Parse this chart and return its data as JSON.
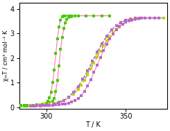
{
  "xlabel": "T / K",
  "ylabel": "χₘT / cm³ mol⁻¹ K",
  "xlim": [
    283,
    376
  ],
  "ylim": [
    -0.05,
    4.25
  ],
  "yticks": [
    0,
    1,
    2,
    3,
    4
  ],
  "xticks": [
    300,
    350
  ],
  "bg_color": "#ffffff",
  "colors": {
    "green": "#44cc00",
    "yellow": "#cccc00",
    "purple": "#bb66cc",
    "pink_line": "#ff88aa",
    "gray_line": "#888888"
  },
  "green_heat_T": [
    284,
    286,
    288,
    290,
    292,
    294,
    296,
    298,
    300,
    302,
    304,
    305,
    306,
    307,
    308,
    309,
    310,
    311,
    312,
    313,
    314,
    316,
    318,
    320,
    325,
    330,
    335,
    340
  ],
  "green_heat_V": [
    0.07,
    0.07,
    0.08,
    0.08,
    0.09,
    0.1,
    0.11,
    0.13,
    0.15,
    0.18,
    0.24,
    0.35,
    0.65,
    1.1,
    1.7,
    2.35,
    2.85,
    3.2,
    3.45,
    3.58,
    3.65,
    3.7,
    3.72,
    3.73,
    3.73,
    3.73,
    3.73,
    3.73
  ],
  "green_cool_T": [
    340,
    335,
    330,
    325,
    320,
    318,
    316,
    314,
    312,
    311,
    310,
    309,
    308,
    307,
    306,
    305,
    304,
    303,
    302,
    301,
    300,
    299,
    298,
    296,
    294,
    292,
    290,
    288,
    286,
    284
  ],
  "green_cool_V": [
    3.73,
    3.73,
    3.73,
    3.73,
    3.73,
    3.73,
    3.73,
    3.73,
    3.73,
    3.72,
    3.68,
    3.55,
    3.28,
    2.8,
    2.18,
    1.52,
    1.0,
    0.62,
    0.38,
    0.24,
    0.16,
    0.12,
    0.1,
    0.08,
    0.07,
    0.06,
    0.06,
    0.06,
    0.06,
    0.06
  ],
  "yellow_heat_T": [
    290,
    293,
    296,
    299,
    302,
    305,
    308,
    311,
    314,
    317,
    320,
    322,
    324,
    326,
    328,
    330,
    332,
    334,
    336,
    338,
    340,
    342,
    344,
    346,
    348,
    350,
    352,
    354,
    356,
    358,
    360,
    362,
    365,
    368,
    371,
    374
  ],
  "yellow_heat_V": [
    0.08,
    0.09,
    0.1,
    0.12,
    0.14,
    0.17,
    0.22,
    0.28,
    0.38,
    0.52,
    0.72,
    0.9,
    1.1,
    1.32,
    1.56,
    1.8,
    2.05,
    2.28,
    2.5,
    2.7,
    2.88,
    3.05,
    3.18,
    3.28,
    3.38,
    3.46,
    3.52,
    3.57,
    3.6,
    3.62,
    3.63,
    3.63,
    3.64,
    3.64,
    3.64,
    3.64
  ],
  "yellow_cool_T": [
    374,
    371,
    368,
    365,
    362,
    359,
    356,
    353,
    350,
    347,
    344,
    341,
    338,
    335,
    332,
    329,
    326,
    323,
    320,
    317,
    314,
    311,
    308,
    305,
    302,
    299,
    296,
    293,
    290
  ],
  "yellow_cool_V": [
    3.64,
    3.64,
    3.64,
    3.64,
    3.64,
    3.63,
    3.62,
    3.6,
    3.55,
    3.46,
    3.33,
    3.14,
    2.88,
    2.56,
    2.2,
    1.82,
    1.45,
    1.12,
    0.84,
    0.6,
    0.42,
    0.28,
    0.19,
    0.13,
    0.1,
    0.08,
    0.07,
    0.06,
    0.06
  ],
  "purple_heat_T": [
    290,
    292,
    294,
    296,
    298,
    300,
    302,
    304,
    306,
    308,
    310,
    312,
    314,
    316,
    318,
    320,
    322,
    324,
    326,
    328,
    330,
    332,
    334,
    336,
    338,
    340,
    342,
    344,
    346,
    348,
    350,
    352,
    354,
    356,
    358,
    360,
    362,
    365,
    368,
    371
  ],
  "purple_heat_V": [
    0.06,
    0.06,
    0.07,
    0.07,
    0.07,
    0.08,
    0.08,
    0.09,
    0.1,
    0.11,
    0.12,
    0.14,
    0.17,
    0.21,
    0.27,
    0.36,
    0.48,
    0.65,
    0.87,
    1.13,
    1.42,
    1.72,
    2.02,
    2.3,
    2.56,
    2.79,
    2.99,
    3.16,
    3.29,
    3.39,
    3.46,
    3.52,
    3.56,
    3.59,
    3.61,
    3.62,
    3.63,
    3.64,
    3.64,
    3.64
  ],
  "purple_cool_T": [
    371,
    368,
    365,
    362,
    359,
    356,
    353,
    350,
    347,
    344,
    341,
    338,
    335,
    332,
    329,
    326,
    323,
    320,
    317,
    314,
    311,
    308,
    305,
    302,
    299,
    296,
    293,
    290
  ],
  "purple_cool_V": [
    3.64,
    3.64,
    3.64,
    3.64,
    3.63,
    3.62,
    3.59,
    3.54,
    3.45,
    3.32,
    3.14,
    2.9,
    2.6,
    2.26,
    1.88,
    1.5,
    1.15,
    0.85,
    0.6,
    0.42,
    0.28,
    0.18,
    0.12,
    0.08,
    0.07,
    0.06,
    0.05,
    0.05
  ]
}
